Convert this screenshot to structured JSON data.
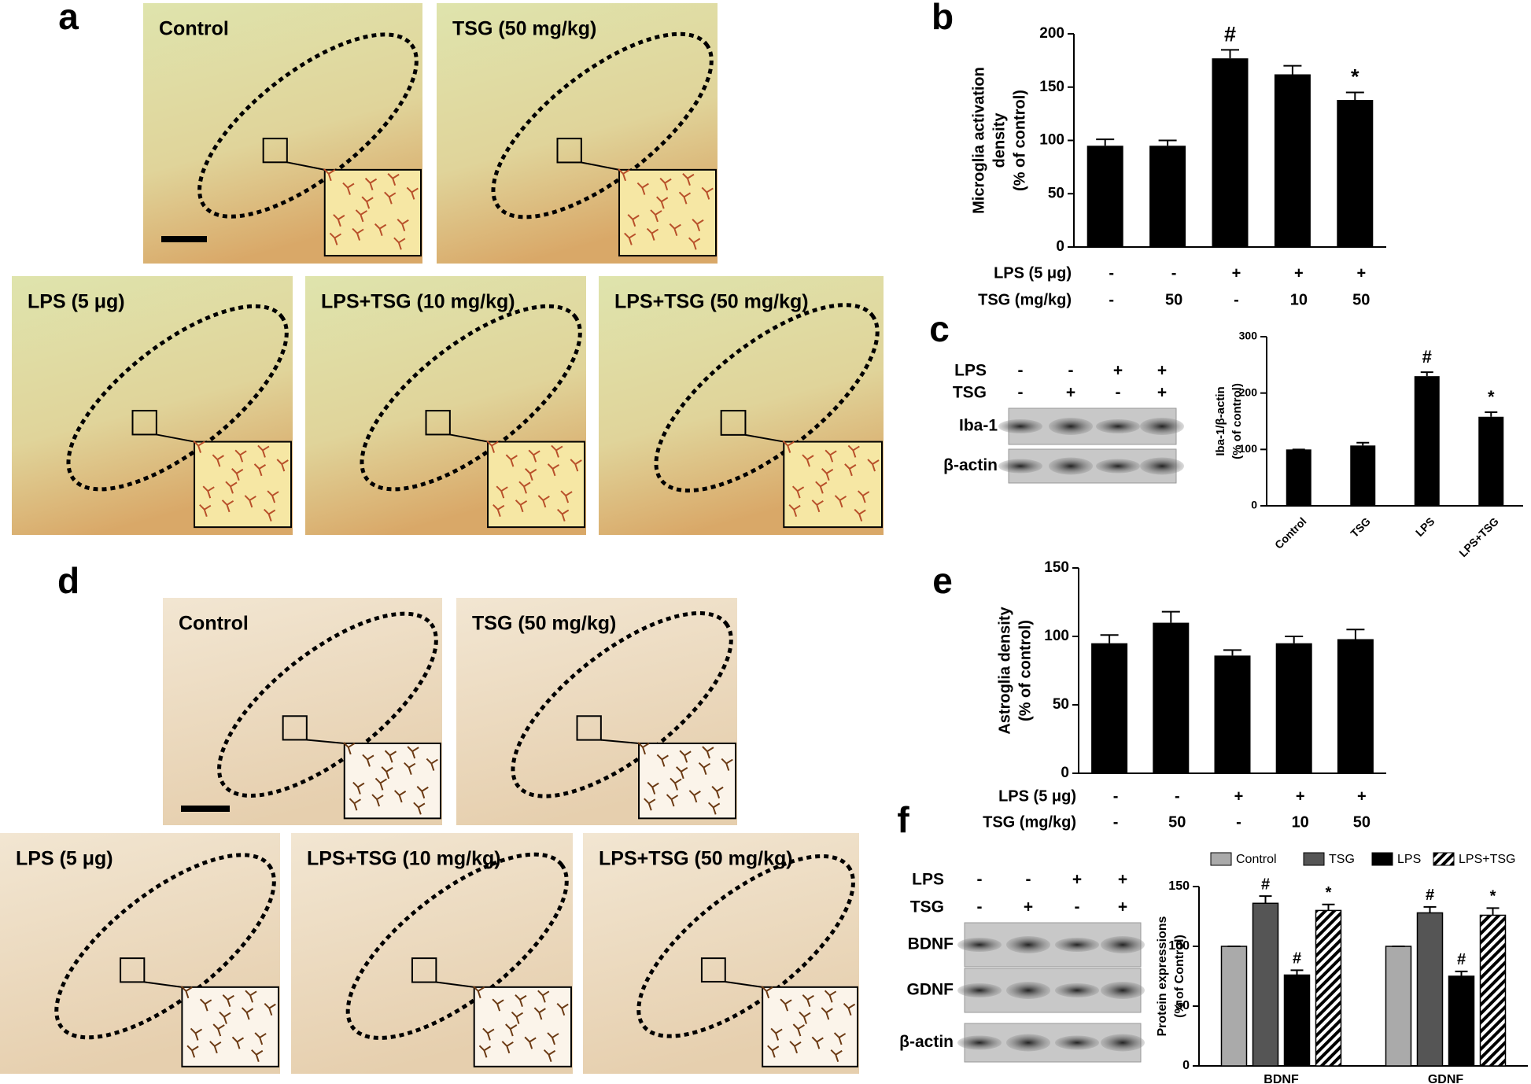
{
  "panel_letters": [
    "a",
    "b",
    "c",
    "d",
    "e",
    "f"
  ],
  "panel_a": {
    "labels": [
      "Control",
      "TSG (50 mg/kg)",
      "LPS (5 μg)",
      "LPS+TSG (10 mg/kg)",
      "LPS+TSG (50 mg/kg)"
    ]
  },
  "panel_d": {
    "labels": [
      "Control",
      "TSG (50 mg/kg)",
      "LPS (5 μg)",
      "LPS+TSG (10 mg/kg)",
      "LPS+TSG (50 mg/kg)"
    ]
  },
  "blot_c": {
    "conditions": [
      {
        "label": "LPS",
        "values": [
          "-",
          "-",
          "+",
          "+"
        ]
      },
      {
        "label": "TSG",
        "values": [
          "-",
          "+",
          "-",
          "+"
        ]
      }
    ],
    "bands": [
      "Iba-1",
      "β-actin"
    ]
  },
  "blot_f": {
    "conditions": [
      {
        "label": "LPS",
        "values": [
          "-",
          "-",
          "+",
          "+"
        ]
      },
      {
        "label": "TSG",
        "values": [
          "-",
          "+",
          "-",
          "+"
        ]
      }
    ],
    "bands": [
      "BDNF",
      "GDNF",
      "β-actin"
    ]
  },
  "chart_data": [
    {
      "type": "bar",
      "ylabel": [
        "Microglia activation",
        "density",
        "(% of control)"
      ],
      "values": [
        95,
        95,
        177,
        162,
        138
      ],
      "errors": [
        6,
        5,
        8,
        8,
        7
      ],
      "color": "#000000",
      "ylim": [
        0,
        200
      ],
      "yticks": [
        0,
        50,
        100,
        150,
        200
      ],
      "conditions": [
        {
          "label": "LPS (5 μg)",
          "values": [
            "-",
            "-",
            "+",
            "+",
            "+"
          ]
        },
        {
          "label": "TSG (mg/kg)",
          "values": [
            "-",
            "50",
            "-",
            "10",
            "50"
          ]
        }
      ],
      "annotations": [
        {
          "index": 2,
          "text": "#"
        },
        {
          "index": 4,
          "text": "*"
        }
      ]
    },
    {
      "type": "bar",
      "ylabel": [
        "Iba-1/β-actin",
        "(% of control)"
      ],
      "categories": [
        "Control",
        "TSG",
        "LPS",
        "LPS+TSG"
      ],
      "values": [
        100,
        107,
        230,
        158
      ],
      "errors": [
        0,
        5,
        7,
        8
      ],
      "color": "#000000",
      "ylim": [
        0,
        300
      ],
      "yticks": [
        0,
        100,
        200,
        300
      ],
      "annotations": [
        {
          "index": 2,
          "text": "#"
        },
        {
          "index": 3,
          "text": "*"
        }
      ]
    },
    {
      "type": "bar",
      "ylabel": [
        "Astroglia density",
        "(% of control)"
      ],
      "values": [
        95,
        110,
        86,
        95,
        98
      ],
      "errors": [
        6,
        8,
        4,
        5,
        7
      ],
      "color": "#000000",
      "ylim": [
        0,
        150
      ],
      "yticks": [
        0,
        50,
        100,
        150
      ],
      "conditions": [
        {
          "label": "LPS (5 μg)",
          "values": [
            "-",
            "-",
            "+",
            "+",
            "+"
          ]
        },
        {
          "label": "TSG (mg/kg)",
          "values": [
            "-",
            "50",
            "-",
            "10",
            "50"
          ]
        }
      ]
    },
    {
      "type": "bar",
      "ylabel": [
        "Protein expressions",
        "(% of Control)"
      ],
      "categories": [
        "BDNF",
        "GDNF"
      ],
      "series": [
        {
          "name": "Control",
          "color": "#aaaaaa",
          "values": [
            100,
            100
          ],
          "errors": [
            0,
            0
          ]
        },
        {
          "name": "TSG",
          "color": "#555555",
          "values": [
            136,
            128
          ],
          "errors": [
            6,
            5
          ],
          "annotations": [
            "#",
            "#"
          ]
        },
        {
          "name": "LPS",
          "color": "#000000",
          "values": [
            76,
            75
          ],
          "errors": [
            4,
            4
          ],
          "annotations": [
            "#",
            "#"
          ]
        },
        {
          "name": "LPS+TSG",
          "color": "#ffffff",
          "hatch": true,
          "values": [
            130,
            126
          ],
          "errors": [
            5,
            6
          ],
          "annotations": [
            "*",
            "*"
          ]
        }
      ],
      "ylim": [
        0,
        150
      ],
      "yticks": [
        0,
        50,
        100,
        150
      ],
      "legend": "top"
    }
  ]
}
